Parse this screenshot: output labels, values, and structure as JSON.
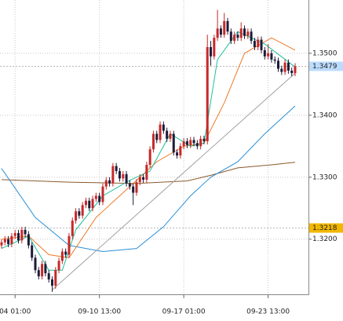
{
  "chart_data": {
    "type": "candlestick",
    "categories": [
      null,
      null,
      null,
      null,
      "04 01:00",
      null,
      null,
      null,
      null,
      null,
      null,
      null,
      null,
      null,
      null,
      null,
      null,
      null,
      null,
      null,
      null,
      null,
      null,
      null,
      null,
      null,
      null,
      null,
      null,
      "09-10 13:00",
      null,
      null,
      null,
      null,
      null,
      null,
      null,
      null,
      null,
      null,
      null,
      null,
      null,
      null,
      null,
      null,
      null,
      null,
      null,
      null,
      null,
      null,
      null,
      null,
      "09-17 01:00",
      null,
      null,
      null,
      null,
      null,
      null,
      null,
      null,
      null,
      null,
      null,
      null,
      null,
      null,
      null,
      null,
      null,
      null,
      null,
      null,
      null,
      null,
      null,
      null,
      "09-23 13:00",
      null,
      null,
      null,
      null,
      null,
      null,
      null,
      null
    ],
    "ohlc": [
      [
        1.319,
        1.32,
        1.3185,
        1.3195
      ],
      [
        1.3195,
        1.3205,
        1.319,
        1.32
      ],
      [
        1.32,
        1.3205,
        1.3187,
        1.3192
      ],
      [
        1.3192,
        1.321,
        1.3187,
        1.3205
      ],
      [
        1.3205,
        1.3215,
        1.32,
        1.321
      ],
      [
        1.321,
        1.3215,
        1.3193,
        1.3198
      ],
      [
        1.3198,
        1.322,
        1.3193,
        1.3215
      ],
      [
        1.3215,
        1.322,
        1.3203,
        1.3208
      ],
      [
        1.3208,
        1.3213,
        1.3185,
        1.319
      ],
      [
        1.319,
        1.3195,
        1.3165,
        1.317
      ],
      [
        1.317,
        1.3175,
        1.3145,
        1.315
      ],
      [
        1.315,
        1.3155,
        1.3135,
        1.314
      ],
      [
        1.314,
        1.3165,
        1.3135,
        1.316
      ],
      [
        1.316,
        1.3165,
        1.314,
        1.3145
      ],
      [
        1.3145,
        1.315,
        1.313,
        1.3135
      ],
      [
        1.3135,
        1.314,
        1.3115,
        1.3125
      ],
      [
        1.3125,
        1.3155,
        1.312,
        1.315
      ],
      [
        1.315,
        1.317,
        1.3145,
        1.3165
      ],
      [
        1.3165,
        1.3185,
        1.316,
        1.318
      ],
      [
        1.318,
        1.3185,
        1.317,
        1.3175
      ],
      [
        1.3175,
        1.321,
        1.317,
        1.3205
      ],
      [
        1.3205,
        1.3235,
        1.32,
        1.323
      ],
      [
        1.323,
        1.325,
        1.3225,
        1.3245
      ],
      [
        1.3245,
        1.325,
        1.3233,
        1.3238
      ],
      [
        1.3238,
        1.326,
        1.3233,
        1.3255
      ],
      [
        1.3255,
        1.3267,
        1.325,
        1.3262
      ],
      [
        1.3262,
        1.3267,
        1.3245,
        1.325
      ],
      [
        1.325,
        1.327,
        1.3245,
        1.3265
      ],
      [
        1.3265,
        1.3275,
        1.326,
        1.327
      ],
      [
        1.327,
        1.3275,
        1.3255,
        1.326
      ],
      [
        1.326,
        1.329,
        1.3255,
        1.3285
      ],
      [
        1.3285,
        1.33,
        1.328,
        1.3295
      ],
      [
        1.3295,
        1.33,
        1.3285,
        1.329
      ],
      [
        1.329,
        1.3323,
        1.3285,
        1.3318
      ],
      [
        1.3318,
        1.3323,
        1.3305,
        1.331
      ],
      [
        1.331,
        1.3315,
        1.3293,
        1.3298
      ],
      [
        1.3298,
        1.331,
        1.3293,
        1.3305
      ],
      [
        1.3305,
        1.331,
        1.3285,
        1.329
      ],
      [
        1.329,
        1.3295,
        1.328,
        1.3285
      ],
      [
        1.3285,
        1.329,
        1.3255,
        1.3275
      ],
      [
        1.3275,
        1.3297,
        1.327,
        1.3292
      ],
      [
        1.3292,
        1.3305,
        1.3287,
        1.33
      ],
      [
        1.33,
        1.3305,
        1.3291,
        1.3296
      ],
      [
        1.3296,
        1.3325,
        1.3291,
        1.332
      ],
      [
        1.332,
        1.335,
        1.3315,
        1.3345
      ],
      [
        1.3345,
        1.3375,
        1.334,
        1.337
      ],
      [
        1.337,
        1.3375,
        1.3355,
        1.336
      ],
      [
        1.336,
        1.339,
        1.3355,
        1.3385
      ],
      [
        1.3385,
        1.339,
        1.337,
        1.3375
      ],
      [
        1.3375,
        1.338,
        1.3357,
        1.3362
      ],
      [
        1.3362,
        1.3375,
        1.3357,
        1.337
      ],
      [
        1.337,
        1.3375,
        1.3335,
        1.334
      ],
      [
        1.334,
        1.3345,
        1.333,
        1.3335
      ],
      [
        1.3335,
        1.3355,
        1.333,
        1.335
      ],
      [
        1.335,
        1.3363,
        1.3345,
        1.3358
      ],
      [
        1.3358,
        1.3363,
        1.3347,
        1.3352
      ],
      [
        1.3352,
        1.3365,
        1.3347,
        1.336
      ],
      [
        1.336,
        1.3365,
        1.335,
        1.3355
      ],
      [
        1.3355,
        1.336,
        1.3345,
        1.335
      ],
      [
        1.335,
        1.3367,
        1.3345,
        1.3362
      ],
      [
        1.3362,
        1.3367,
        1.3353,
        1.3358
      ],
      [
        1.3358,
        1.353,
        1.3353,
        1.351
      ],
      [
        1.351,
        1.352,
        1.348,
        1.3495
      ],
      [
        1.3495,
        1.353,
        1.349,
        1.3525
      ],
      [
        1.3525,
        1.357,
        1.352,
        1.354
      ],
      [
        1.354,
        1.3545,
        1.3525,
        1.353
      ],
      [
        1.353,
        1.3565,
        1.3525,
        1.3552
      ],
      [
        1.3552,
        1.3557,
        1.353,
        1.3535
      ],
      [
        1.3535,
        1.354,
        1.3515,
        1.352
      ],
      [
        1.352,
        1.3535,
        1.3515,
        1.353
      ],
      [
        1.353,
        1.3535,
        1.352,
        1.3525
      ],
      [
        1.3525,
        1.355,
        1.352,
        1.354
      ],
      [
        1.354,
        1.3545,
        1.3523,
        1.3528
      ],
      [
        1.3528,
        1.354,
        1.3523,
        1.3535
      ],
      [
        1.3535,
        1.354,
        1.3515,
        1.352
      ],
      [
        1.352,
        1.3525,
        1.3505,
        1.351
      ],
      [
        1.351,
        1.3527,
        1.3505,
        1.3522
      ],
      [
        1.3522,
        1.3527,
        1.35,
        1.3505
      ],
      [
        1.3505,
        1.351,
        1.349,
        1.3495
      ],
      [
        1.3495,
        1.3515,
        1.349,
        1.35
      ],
      [
        1.35,
        1.3505,
        1.3485,
        1.349
      ],
      [
        1.349,
        1.3495,
        1.3483,
        1.3488
      ],
      [
        1.3488,
        1.3493,
        1.347,
        1.3475
      ],
      [
        1.3475,
        1.348,
        1.3465,
        1.347
      ],
      [
        1.347,
        1.349,
        1.3465,
        1.3485
      ],
      [
        1.3485,
        1.349,
        1.3467,
        1.3472
      ],
      [
        1.3472,
        1.3477,
        1.3463,
        1.3468
      ],
      [
        1.3468,
        1.3484,
        1.3463,
        1.3479
      ]
    ],
    "up_color": "#c62828",
    "down_color": "#1c1c3a",
    "lines": [
      {
        "color": "#8a5a2b",
        "x": [
          0,
          20,
          40,
          55,
          62,
          70,
          80,
          87
        ],
        "values": [
          1.3296,
          1.3292,
          1.329,
          1.3294,
          1.3303,
          1.3315,
          1.332,
          1.3324
        ]
      },
      {
        "color": "#2a8fd6",
        "x": [
          0,
          10,
          20,
          30,
          40,
          48,
          56,
          62,
          70,
          78,
          87
        ],
        "values": [
          1.3314,
          1.3235,
          1.319,
          1.318,
          1.3185,
          1.322,
          1.327,
          1.33,
          1.3325,
          1.337,
          1.3415
        ]
      },
      {
        "color": "#a0a0a0",
        "x": [
          15,
          87
        ],
        "values": [
          1.3118,
          1.3468
        ]
      },
      {
        "color": "#f07a2a",
        "x": [
          0,
          8,
          14,
          20,
          28,
          38,
          46,
          54,
          60,
          66,
          72,
          80,
          87
        ],
        "values": [
          1.32,
          1.3205,
          1.3175,
          1.317,
          1.3235,
          1.3285,
          1.3325,
          1.335,
          1.3355,
          1.342,
          1.35,
          1.3525,
          1.3505
        ]
      },
      {
        "color": "#1fbf9a",
        "x": [
          0,
          8,
          14,
          18,
          22,
          30,
          38,
          44,
          50,
          56,
          60,
          64,
          70,
          78,
          87
        ],
        "values": [
          1.3185,
          1.3205,
          1.315,
          1.315,
          1.3215,
          1.327,
          1.3295,
          1.331,
          1.337,
          1.335,
          1.3355,
          1.349,
          1.3535,
          1.3515,
          1.3478
        ]
      }
    ],
    "ylim": [
      1.3111,
      1.3586
    ],
    "yticks": [
      {
        "value": 1.32,
        "label": "1.3200"
      },
      {
        "value": 1.33,
        "label": "1.3300"
      },
      {
        "value": 1.34,
        "label": "1.3400"
      },
      {
        "value": 1.35,
        "label": "1.3500"
      }
    ],
    "price_markers": [
      {
        "value": 1.3479,
        "color": "#bcdcff"
      },
      {
        "value": 1.3218,
        "color": "#f2b800"
      }
    ],
    "grid": true
  }
}
